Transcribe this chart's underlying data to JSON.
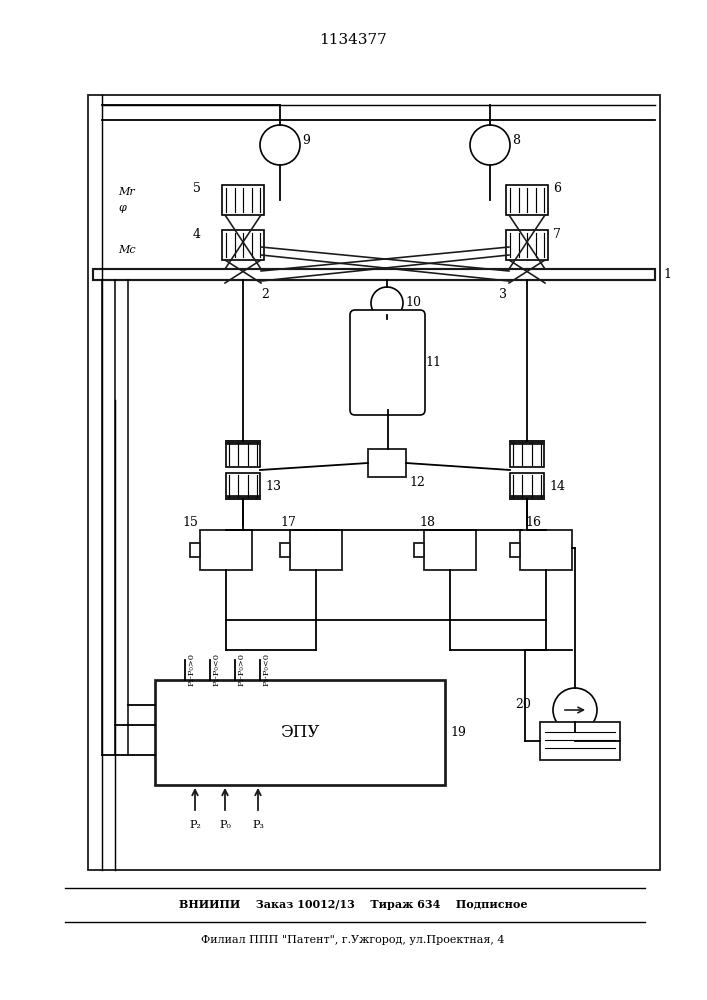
{
  "title": "1134377",
  "footer_line1": "ВНИИПИ    Заказ 10012/13    Тираж 634    Подписное",
  "footer_line2": "Филиал ППП \"Патент\", г.Ужгород, ул.Проектная, 4",
  "bg_color": "#ffffff",
  "line_color": "#1a1a1a"
}
